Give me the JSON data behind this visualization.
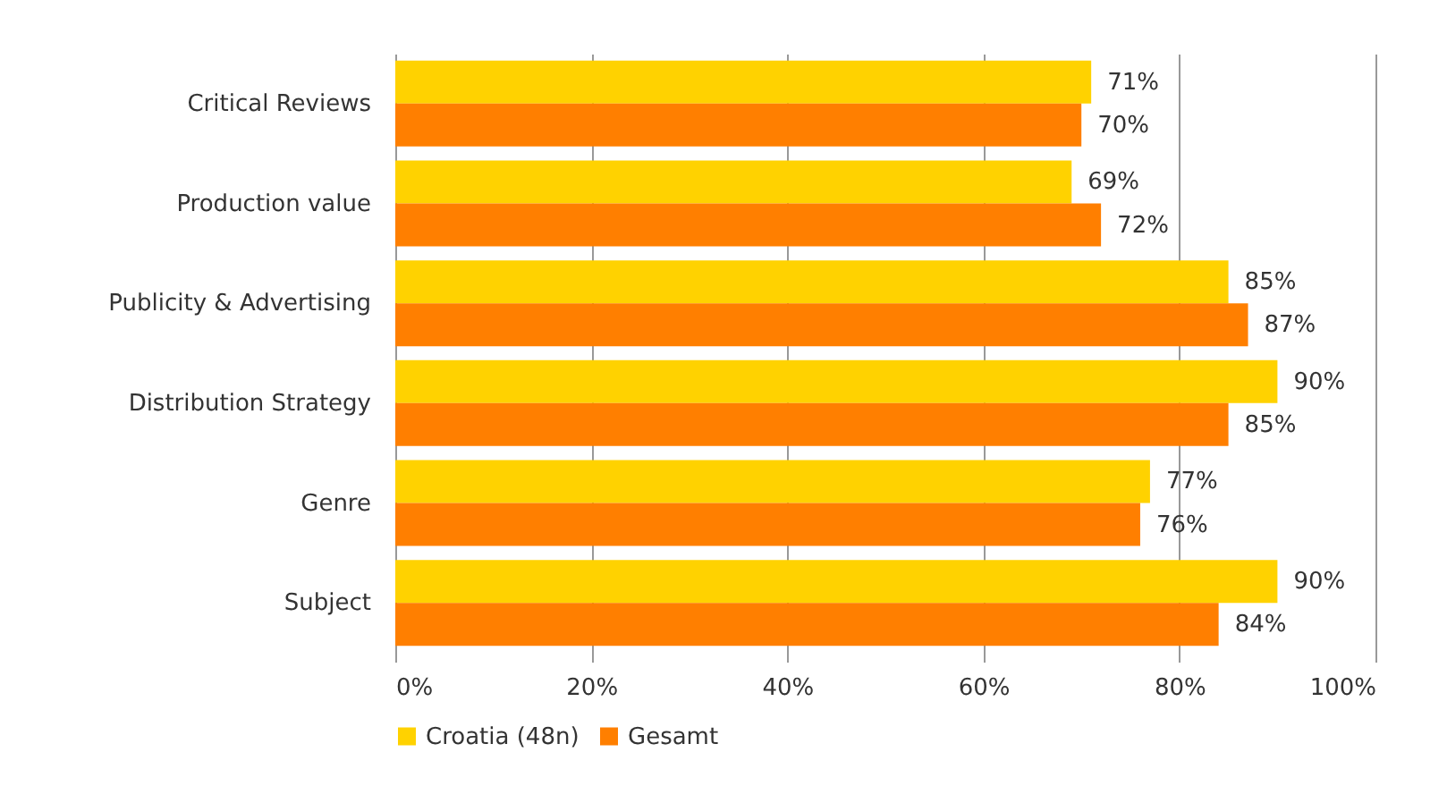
{
  "chart_data": {
    "type": "bar",
    "orientation": "horizontal",
    "categories": [
      "Critical Reviews",
      "Production value",
      "Publicity & Advertising",
      "Distribution Strategy",
      "Genre",
      "Subject"
    ],
    "series": [
      {
        "name": "Croatia (48n)",
        "color": "#ffd200",
        "values": [
          71,
          69,
          85,
          90,
          77,
          90
        ],
        "value_labels": [
          "71%",
          "69%",
          "85%",
          "90%",
          "77%",
          "90%"
        ]
      },
      {
        "name": "Gesamt",
        "color": "#ff7f00",
        "values": [
          70,
          72,
          87,
          85,
          76,
          84
        ],
        "value_labels": [
          "70%",
          "72%",
          "87%",
          "85%",
          "76%",
          "84%"
        ]
      }
    ],
    "xlim": [
      0,
      100
    ],
    "xticks": [
      {
        "value": 0,
        "label": "0%"
      },
      {
        "value": 20,
        "label": "20%"
      },
      {
        "value": 40,
        "label": "40%"
      },
      {
        "value": 60,
        "label": "60%"
      },
      {
        "value": 80,
        "label": "80%"
      },
      {
        "value": 100,
        "label": "100%"
      }
    ],
    "grid": "x",
    "legend": "bottom"
  }
}
